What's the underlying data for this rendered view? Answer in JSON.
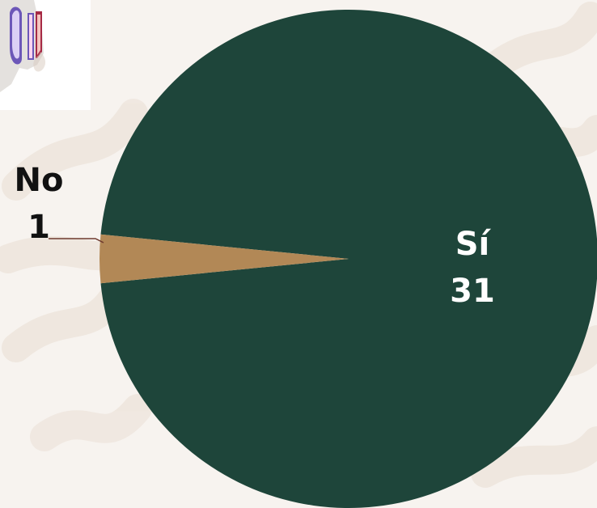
{
  "chart_data": {
    "type": "pie",
    "categories": [
      "No",
      "Sí"
    ],
    "values": [
      1,
      31
    ],
    "labels": [
      {
        "name": "No",
        "value": "1"
      },
      {
        "name": "Sí",
        "value": "31"
      }
    ],
    "colors": [
      "#b28856",
      "#1e453a"
    ],
    "leader_line_color": "#6e3a2e",
    "background_color": "#f7f3ef"
  }
}
